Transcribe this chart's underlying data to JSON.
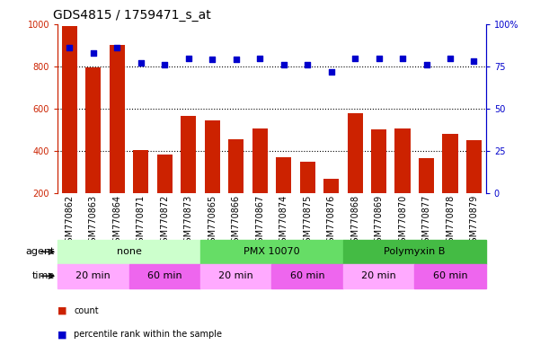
{
  "title": "GDS4815 / 1759471_s_at",
  "samples": [
    "GSM770862",
    "GSM770863",
    "GSM770864",
    "GSM770871",
    "GSM770872",
    "GSM770873",
    "GSM770865",
    "GSM770866",
    "GSM770867",
    "GSM770874",
    "GSM770875",
    "GSM770876",
    "GSM770868",
    "GSM770869",
    "GSM770870",
    "GSM770877",
    "GSM770878",
    "GSM770879"
  ],
  "counts": [
    990,
    795,
    900,
    405,
    385,
    565,
    545,
    455,
    505,
    370,
    350,
    270,
    580,
    500,
    505,
    365,
    480,
    450
  ],
  "percentiles": [
    86,
    83,
    86,
    77,
    76,
    80,
    79,
    79,
    80,
    76,
    76,
    72,
    80,
    80,
    80,
    76,
    80,
    78
  ],
  "bar_color": "#cc2200",
  "dot_color": "#0000cc",
  "ylim_left": [
    200,
    1000
  ],
  "ylim_right": [
    0,
    100
  ],
  "yticks_left": [
    200,
    400,
    600,
    800,
    1000
  ],
  "yticks_right": [
    0,
    25,
    50,
    75,
    100
  ],
  "ytick_right_labels": [
    "0",
    "25",
    "50",
    "75",
    "100%"
  ],
  "gridlines": [
    400,
    600,
    800
  ],
  "agent_groups": [
    {
      "label": "none",
      "start": 0,
      "end": 6,
      "color": "#ccffcc"
    },
    {
      "label": "PMX 10070",
      "start": 6,
      "end": 12,
      "color": "#66dd66"
    },
    {
      "label": "Polymyxin B",
      "start": 12,
      "end": 18,
      "color": "#44bb44"
    }
  ],
  "time_groups": [
    {
      "label": "20 min",
      "start": 0,
      "end": 3,
      "color": "#ffaaff"
    },
    {
      "label": "60 min",
      "start": 3,
      "end": 6,
      "color": "#ee66ee"
    },
    {
      "label": "20 min",
      "start": 6,
      "end": 9,
      "color": "#ffaaff"
    },
    {
      "label": "60 min",
      "start": 9,
      "end": 12,
      "color": "#ee66ee"
    },
    {
      "label": "20 min",
      "start": 12,
      "end": 15,
      "color": "#ffaaff"
    },
    {
      "label": "60 min",
      "start": 15,
      "end": 18,
      "color": "#ee66ee"
    }
  ],
  "legend_items": [
    {
      "label": "count",
      "color": "#cc2200"
    },
    {
      "label": "percentile rank within the sample",
      "color": "#0000cc"
    }
  ],
  "agent_label": "agent",
  "time_label": "time",
  "background_color": "#ffffff",
  "axis_left_color": "#cc2200",
  "axis_right_color": "#0000cc",
  "label_fontsize": 7,
  "tick_fontsize": 7,
  "annotation_fontsize": 8
}
